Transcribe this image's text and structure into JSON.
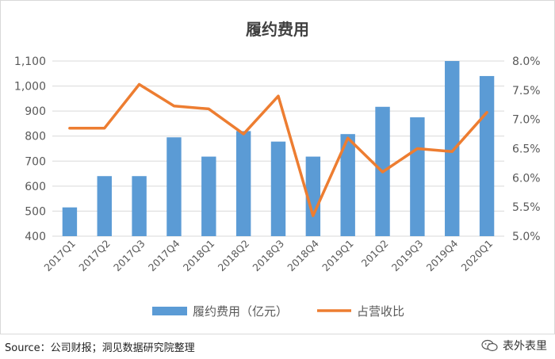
{
  "source_text": "Source：公司财报；洞见数据研究院整理",
  "watermark_text": "表外表里",
  "watermark_icon": "wechat-icon",
  "colors": {
    "bar": "#5b9bd5",
    "line": "#ed7d31",
    "text": "#595959",
    "title": "#404040"
  },
  "chart_data": {
    "type": "bar",
    "title": "履约费用",
    "categories": [
      "2017Q1",
      "2017Q2",
      "2017Q3",
      "2017Q4",
      "2018Q1",
      "2018Q2",
      "2018Q3",
      "2018Q4",
      "2019Q1",
      "201Q2",
      "2019Q3",
      "2019Q4",
      "2020Q1"
    ],
    "series": [
      {
        "name": "履约费用（亿元）",
        "type": "bar",
        "axis": "left",
        "values": [
          515,
          640,
          640,
          795,
          718,
          820,
          778,
          718,
          808,
          917,
          875,
          1100,
          1040
        ]
      },
      {
        "name": "占营收比",
        "type": "line",
        "axis": "right",
        "values": [
          6.85,
          6.85,
          7.6,
          7.23,
          7.18,
          6.75,
          7.4,
          5.35,
          6.68,
          6.1,
          6.5,
          6.45,
          7.12
        ]
      }
    ],
    "ylim": [
      400,
      1100
    ],
    "yticks": [
      "400",
      "500",
      "600",
      "700",
      "800",
      "900",
      "1,000",
      "1,100"
    ],
    "y2lim": [
      5.0,
      8.0
    ],
    "y2ticks": [
      "5.0%",
      "5.5%",
      "6.0%",
      "6.5%",
      "7.0%",
      "7.5%",
      "8.0%"
    ],
    "legend_position": "bottom",
    "grid": true
  }
}
